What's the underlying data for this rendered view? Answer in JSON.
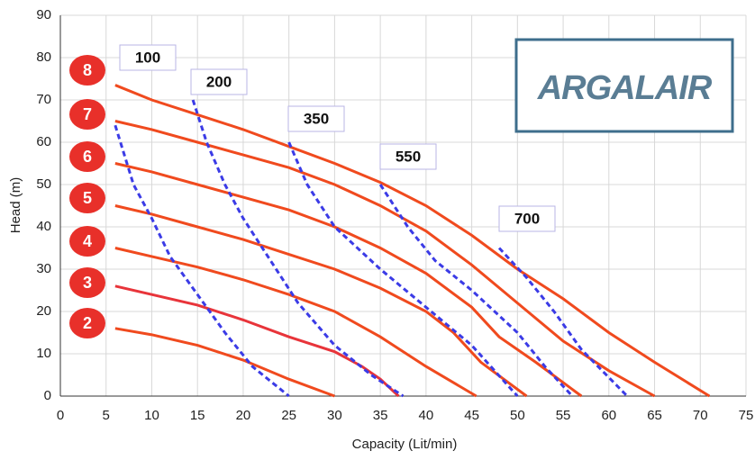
{
  "chart_data": {
    "type": "line",
    "x_label": "Capacity (Lit/min)",
    "y_label": "Head (m)",
    "logo": "ARGALAIR",
    "xlim": [
      0,
      75
    ],
    "ylim": [
      0,
      90
    ],
    "xticks": [
      0,
      5,
      10,
      15,
      20,
      25,
      30,
      35,
      40,
      45,
      50,
      55,
      60,
      65,
      70,
      75
    ],
    "yticks": [
      0,
      10,
      20,
      30,
      40,
      50,
      60,
      70,
      80,
      90
    ],
    "grid": true,
    "series": [
      {
        "name": "8",
        "color": "#f04a1e",
        "style": "solid",
        "x": [
          6,
          10,
          15,
          20,
          25,
          30,
          35,
          40,
          45,
          50,
          55,
          60,
          65,
          71
        ],
        "values": [
          73.5,
          70,
          66.5,
          63,
          59,
          55,
          50.5,
          45,
          38,
          30,
          23,
          15,
          8,
          0
        ]
      },
      {
        "name": "7",
        "color": "#f04a1e",
        "style": "solid",
        "x": [
          6,
          10,
          15,
          20,
          25,
          30,
          35,
          40,
          45,
          50,
          55,
          60,
          65
        ],
        "values": [
          65,
          63,
          60,
          57,
          54,
          50,
          45,
          39,
          31,
          22,
          13,
          6,
          0
        ]
      },
      {
        "name": "6",
        "color": "#f04a1e",
        "style": "solid",
        "x": [
          6,
          10,
          15,
          20,
          25,
          30,
          35,
          40,
          45,
          48,
          52,
          57
        ],
        "values": [
          55,
          53,
          50,
          47,
          44,
          40,
          35,
          29,
          21,
          14,
          8,
          0
        ]
      },
      {
        "name": "5",
        "color": "#f04a1e",
        "style": "solid",
        "x": [
          6,
          10,
          15,
          20,
          25,
          30,
          35,
          40,
          43,
          46,
          51
        ],
        "values": [
          45,
          43,
          40,
          37,
          33.5,
          30,
          25.5,
          20,
          15,
          8,
          0
        ]
      },
      {
        "name": "4",
        "color": "#f04a1e",
        "style": "solid",
        "x": [
          6,
          10,
          15,
          20,
          25,
          30,
          35,
          40,
          45.5
        ],
        "values": [
          35,
          33,
          30.5,
          27.5,
          24,
          20,
          14,
          7,
          0
        ]
      },
      {
        "name": "3",
        "color": "#e8343a",
        "style": "solid",
        "x": [
          6,
          10,
          15,
          20,
          25,
          30,
          33,
          35,
          37
        ],
        "values": [
          26,
          24,
          21.5,
          18,
          14,
          10.5,
          7,
          4,
          0
        ]
      },
      {
        "name": "2",
        "color": "#f04a1e",
        "style": "solid",
        "x": [
          6,
          10,
          15,
          20,
          25,
          30
        ],
        "values": [
          16,
          14.5,
          12,
          8.5,
          4,
          0
        ]
      },
      {
        "name": "100",
        "color": "#3b3be6",
        "style": "dashed",
        "x": [
          6,
          8,
          10,
          12,
          15,
          18,
          21,
          25
        ],
        "values": [
          64,
          50,
          42,
          33,
          24,
          15,
          7,
          0
        ]
      },
      {
        "name": "200",
        "color": "#3b3be6",
        "style": "dashed",
        "x": [
          14.5,
          16,
          18,
          20,
          23,
          26,
          30,
          34,
          37.5
        ],
        "values": [
          70,
          60,
          50,
          42,
          32,
          22,
          12,
          5,
          0
        ]
      },
      {
        "name": "350",
        "color": "#3b3be6",
        "style": "dashed",
        "x": [
          25,
          27,
          30,
          35,
          40,
          45,
          50
        ],
        "values": [
          60,
          50,
          40,
          30,
          21,
          12,
          0
        ]
      },
      {
        "name": "550",
        "color": "#3b3be6",
        "style": "dashed",
        "x": [
          35,
          38,
          41,
          45,
          50,
          53,
          56
        ],
        "values": [
          50,
          40,
          32,
          25,
          15,
          7,
          0
        ]
      },
      {
        "name": "700",
        "color": "#3b3be6",
        "style": "dashed",
        "x": [
          48,
          51,
          54,
          57,
          62
        ],
        "values": [
          35,
          28,
          20,
          11,
          0
        ]
      }
    ]
  }
}
